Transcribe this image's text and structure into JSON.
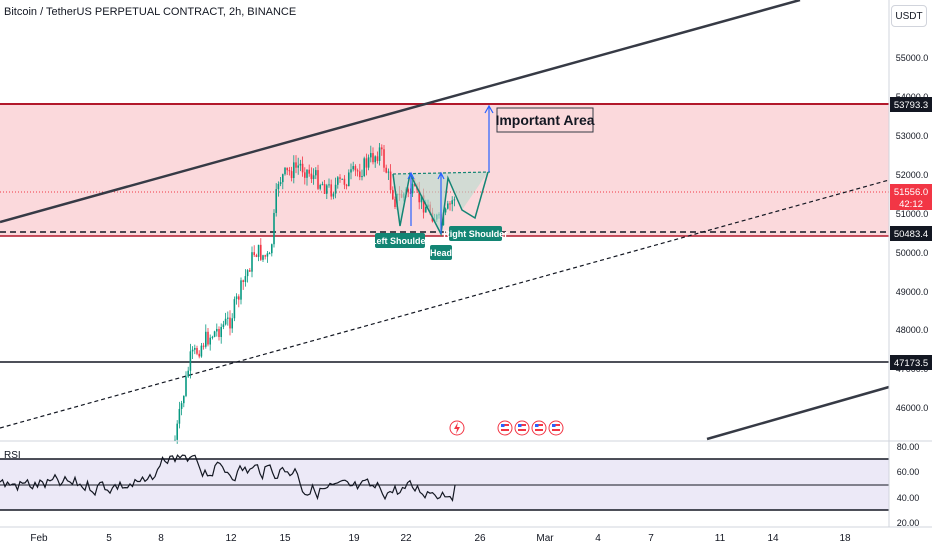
{
  "header": {
    "title": "Bitcoin / TetherUS PERPETUAL CONTRACT, 2h, BINANCE",
    "currency_button": "USDT"
  },
  "price_axis": {
    "ticks": [
      "55000.0",
      "54000.0",
      "53000.0",
      "52000.0",
      "51000.0",
      "50000.0",
      "49000.0",
      "48000.0",
      "47000.0",
      "46000.0"
    ],
    "tags": {
      "resistance": {
        "label": "53793.3",
        "color": "#131722"
      },
      "current": {
        "label": "51556.0",
        "countdown": "42:12",
        "color": "#f23645"
      },
      "support": {
        "label": "50483.4",
        "color": "#131722"
      },
      "horizontal": {
        "label": "47173.5",
        "color": "#131722"
      }
    }
  },
  "time_axis": {
    "labels": [
      "Feb",
      "5",
      "8",
      "12",
      "15",
      "19",
      "22",
      "26",
      "Mar",
      "4",
      "7",
      "11",
      "14",
      "18"
    ]
  },
  "annotations": {
    "important_area": "Important Area",
    "left_shoulder": "Left Shoulder",
    "head": "Head",
    "right_shoulder": "Right Shoulder"
  },
  "rsi": {
    "label": "RSI",
    "ticks": [
      "80.00",
      "60.00",
      "40.00",
      "20.00"
    ]
  },
  "colors": {
    "zone_fill": "#fbd9dc",
    "zone_border": "#b2182b",
    "candle_up": "#089981",
    "candle_down": "#f23645",
    "teal_label": "#138574",
    "pattern_fill": "#b7dccf",
    "arrow": "#2962ff",
    "rsi_band": "#ece9f7"
  },
  "icons": [
    "flash-event-icon",
    "us-flag-event-icon",
    "us-flag-event-icon",
    "us-flag-event-icon",
    "us-flag-event-icon"
  ]
}
